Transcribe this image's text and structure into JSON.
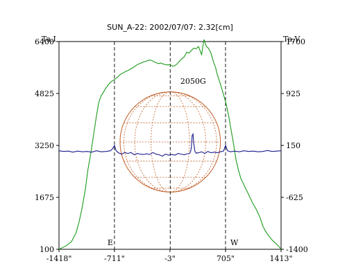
{
  "chart_data": {
    "type": "line",
    "title": "SUN_A-22: 2002/07/07: 2.32[cm]",
    "left_axis_label": "Ta,I",
    "right_axis_label": "Ta,V",
    "x_ticks": [
      "-1418\"",
      "-711\"",
      "-3\"",
      "705\"",
      "1413\""
    ],
    "x_tick_values": [
      -1418,
      -711,
      -3,
      705,
      1413
    ],
    "xlim": [
      -1418,
      1413
    ],
    "left_ticks": [
      "6400",
      "4825",
      "3250",
      "1675",
      "100"
    ],
    "left_tick_values": [
      6400,
      4825,
      3250,
      1675,
      100
    ],
    "ylim_left": [
      100,
      6400
    ],
    "right_ticks": [
      "1700",
      "925",
      "150",
      "-625",
      "-1400"
    ],
    "right_tick_values": [
      1700,
      925,
      150,
      -625,
      -1400
    ],
    "ylim_right": [
      -1400,
      1700
    ],
    "markers": [
      {
        "label": "E",
        "x": -711
      },
      {
        "label": "W",
        "x": 705
      }
    ],
    "annotation": {
      "text": "2050G",
      "x": 280,
      "y": 5200
    },
    "solar_disk_radius_arcsec": 640,
    "series": [
      {
        "axis": "left",
        "color": "#1a9b1a",
        "x": [
          -1418,
          -1330,
          -1260,
          -1200,
          -1160,
          -1120,
          -1080,
          -1050,
          -1010,
          -975,
          -940,
          -910,
          -880,
          -850,
          -820,
          -790,
          -760,
          -730,
          -711,
          -690,
          -660,
          -630,
          -600,
          -570,
          -540,
          -510,
          -480,
          -450,
          -420,
          -390,
          -360,
          -330,
          -300,
          -270,
          -240,
          -210,
          -180,
          -150,
          -120,
          -90,
          -60,
          -30,
          -3,
          30,
          60,
          90,
          120,
          150,
          180,
          210,
          240,
          270,
          300,
          330,
          360,
          400,
          430,
          460,
          490,
          520,
          550,
          580,
          600,
          630,
          660,
          690,
          705,
          720,
          745,
          770,
          800,
          840,
          870,
          900,
          950,
          1000,
          1050,
          1100,
          1150,
          1180,
          1230,
          1300,
          1380,
          1413
        ],
        "y": [
          100,
          200,
          330,
          600,
          950,
          1400,
          1950,
          2500,
          3050,
          3600,
          4150,
          4560,
          4760,
          4870,
          4990,
          5090,
          5170,
          5220,
          5250,
          5290,
          5350,
          5410,
          5450,
          5490,
          5520,
          5560,
          5600,
          5650,
          5700,
          5730,
          5760,
          5790,
          5810,
          5840,
          5830,
          5790,
          5760,
          5730,
          5750,
          5720,
          5700,
          5690,
          5700,
          5650,
          5670,
          5730,
          5810,
          5880,
          5940,
          6080,
          6050,
          6130,
          6200,
          6180,
          6250,
          6000,
          6460,
          6250,
          6190,
          6040,
          5790,
          5600,
          5400,
          5180,
          4950,
          4700,
          4580,
          4420,
          4150,
          3800,
          3400,
          2800,
          2500,
          2250,
          2000,
          1760,
          1500,
          1300,
          1030,
          800,
          590,
          380,
          200,
          100
        ]
      },
      {
        "axis": "right",
        "color": "#1a1a8c",
        "x": [
          -1418,
          -1360,
          -1300,
          -1240,
          -1180,
          -1120,
          -1060,
          -1000,
          -940,
          -880,
          -820,
          -760,
          -730,
          -711,
          -690,
          -660,
          -620,
          -580,
          -540,
          -500,
          -460,
          -420,
          -380,
          -340,
          -300,
          -260,
          -220,
          -180,
          -140,
          -100,
          -60,
          -20,
          20,
          60,
          100,
          140,
          180,
          200,
          220,
          240,
          250,
          260,
          270,
          280,
          290,
          300,
          315,
          330,
          360,
          400,
          440,
          480,
          520,
          560,
          600,
          640,
          680,
          705,
          730,
          770,
          820,
          880,
          940,
          1000,
          1060,
          1120,
          1180,
          1240,
          1300,
          1360,
          1413
        ],
        "y": [
          70,
          60,
          65,
          50,
          65,
          55,
          60,
          50,
          70,
          55,
          60,
          70,
          110,
          150,
          70,
          40,
          20,
          45,
          30,
          45,
          10,
          30,
          20,
          15,
          25,
          15,
          45,
          20,
          10,
          -10,
          20,
          5,
          15,
          5,
          30,
          20,
          10,
          20,
          25,
          30,
          35,
          60,
          130,
          300,
          320,
          180,
          60,
          35,
          40,
          55,
          30,
          60,
          40,
          50,
          40,
          55,
          65,
          150,
          70,
          55,
          65,
          55,
          70,
          60,
          65,
          55,
          60,
          75,
          60,
          65,
          70
        ]
      }
    ]
  }
}
